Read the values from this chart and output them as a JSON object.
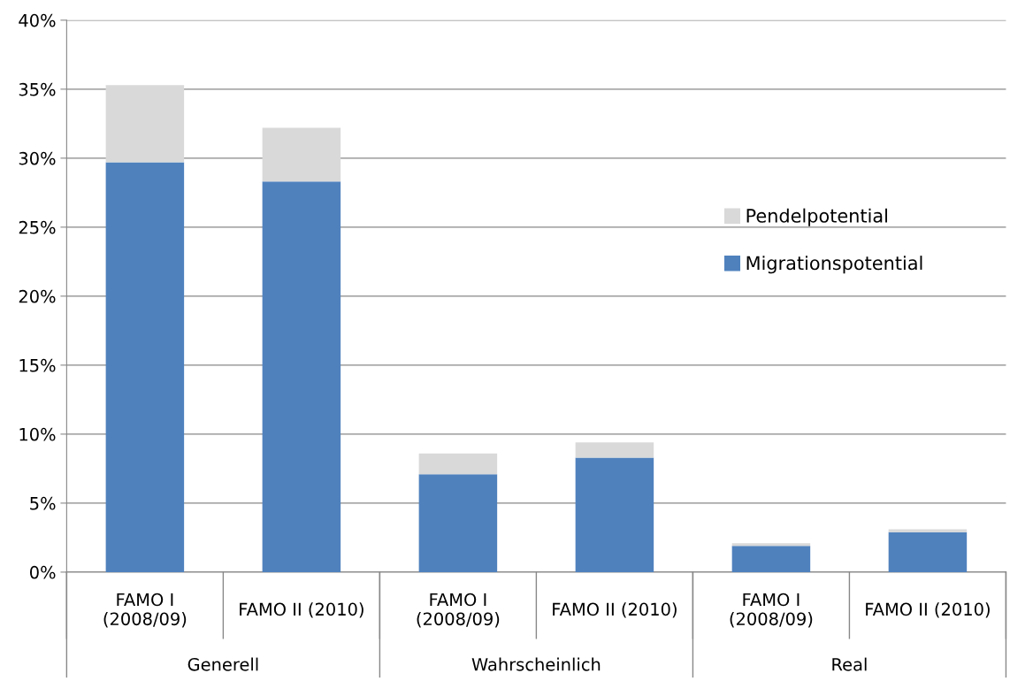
{
  "chart_data": {
    "type": "bar",
    "stacked": true,
    "categories": [
      "FAMO I\n(2008/09)",
      "FAMO II (2010)",
      "FAMO I\n(2008/09)",
      "FAMO II (2010)",
      "FAMO I\n(2008/09)",
      "FAMO II (2010)"
    ],
    "series": [
      {
        "name": "Migrationspotential",
        "color": "#4f81bd",
        "values": [
          29.7,
          28.3,
          7.1,
          8.3,
          1.9,
          2.9
        ]
      },
      {
        "name": "Pendelpotential",
        "color": "#d9d9d9",
        "values": [
          5.6,
          3.9,
          1.5,
          1.1,
          0.2,
          0.2
        ]
      }
    ],
    "annotations": [
      "Generell",
      "Wahrscheinlich",
      "Real"
    ],
    "ylim": [
      0,
      40
    ],
    "yticks": [
      {
        "value": 0,
        "label": "0%"
      },
      {
        "value": 5,
        "label": "5%"
      },
      {
        "value": 10,
        "label": "10%"
      },
      {
        "value": 15,
        "label": "15%"
      },
      {
        "value": 20,
        "label": "20%"
      },
      {
        "value": 25,
        "label": "25%"
      },
      {
        "value": 30,
        "label": "30%"
      },
      {
        "value": 35,
        "label": "35%"
      },
      {
        "value": 40,
        "label": "40%"
      }
    ],
    "grid": "y",
    "legend": "right"
  }
}
